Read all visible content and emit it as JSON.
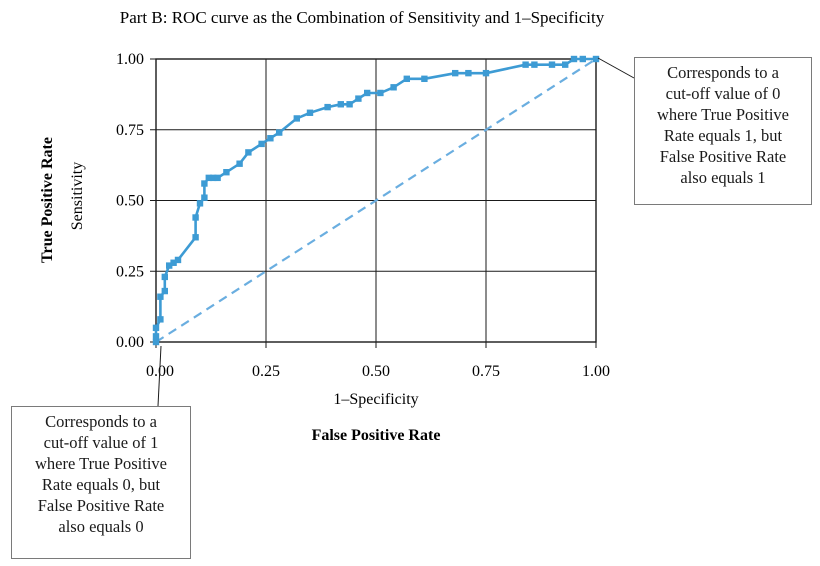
{
  "chart_data": {
    "type": "line",
    "title": "Part B: ROC curve as the Combination of Sensitivity and 1–Specificity",
    "xlabel": "1–Specificity",
    "xlabel_secondary": "False Positive Rate",
    "ylabel": "Sensitivity",
    "ylabel_secondary": "True Positive Rate",
    "xlim": [
      0,
      1
    ],
    "ylim": [
      0,
      1
    ],
    "x_ticks": [
      "0.00",
      "0.25",
      "0.50",
      "0.75",
      "1.00"
    ],
    "y_ticks": [
      "0.00",
      "0.25",
      "0.50",
      "0.75",
      "1.00"
    ],
    "grid": true,
    "colors": {
      "roc": "#3d9bd4",
      "reference": "#6aaee0",
      "grid": "#1a1a1a"
    },
    "series": [
      {
        "style": "solid-with-square-markers",
        "x": [
          0.0,
          0.0,
          0.0,
          0.01,
          0.01,
          0.02,
          0.02,
          0.03,
          0.04,
          0.05,
          0.09,
          0.09,
          0.1,
          0.11,
          0.11,
          0.12,
          0.13,
          0.14,
          0.16,
          0.19,
          0.21,
          0.24,
          0.26,
          0.28,
          0.32,
          0.35,
          0.39,
          0.42,
          0.44,
          0.46,
          0.48,
          0.51,
          0.54,
          0.57,
          0.61,
          0.68,
          0.71,
          0.75,
          0.84,
          0.86,
          0.9,
          0.93,
          0.95,
          0.97,
          1.0
        ],
        "y": [
          0.0,
          0.02,
          0.05,
          0.08,
          0.16,
          0.18,
          0.23,
          0.27,
          0.28,
          0.29,
          0.37,
          0.44,
          0.49,
          0.51,
          0.56,
          0.58,
          0.58,
          0.58,
          0.6,
          0.63,
          0.67,
          0.7,
          0.72,
          0.74,
          0.79,
          0.81,
          0.83,
          0.84,
          0.84,
          0.86,
          0.88,
          0.88,
          0.9,
          0.93,
          0.93,
          0.95,
          0.95,
          0.95,
          0.98,
          0.98,
          0.98,
          0.98,
          1.0,
          1.0,
          1.0
        ]
      },
      {
        "style": "dashed-reference",
        "x": [
          0,
          1
        ],
        "y": [
          0,
          1
        ]
      }
    ],
    "annotations": [
      {
        "lines": [
          "Corresponds to a",
          "cut-off value of 0",
          "where True Positive",
          "Rate equals 1, but",
          "False Positive Rate",
          "also equals 1"
        ],
        "points_to": [
          1,
          1
        ]
      },
      {
        "lines": [
          "Corresponds to a",
          "cut-off value of 1",
          "where True Positive",
          "Rate equals 0, but",
          "False Positive Rate",
          "also equals 0"
        ],
        "points_to": [
          0,
          0
        ]
      }
    ]
  }
}
